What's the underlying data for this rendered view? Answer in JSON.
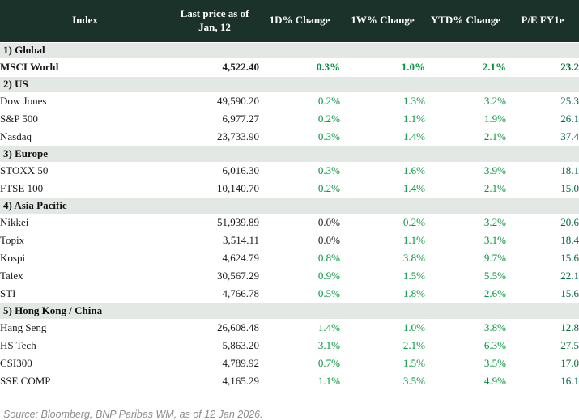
{
  "colors": {
    "header_bg": "#1b322b",
    "header_text": "#ffffff",
    "section_bg": "#e4e8e4",
    "positive_green": "#00963c",
    "pe_green": "#006b3c",
    "neutral_text": "#1a1a1a",
    "source_gray": "#8c8c8c"
  },
  "headers": {
    "index": "Index",
    "price_line1": "Last price as of",
    "price_line2": "Jan, 12",
    "d1": "1D% Change",
    "w1": "1W% Change",
    "ytd": "YTD% Change",
    "pe": "P/E FY1e"
  },
  "sections": [
    {
      "label": "1) Global",
      "rows": [
        {
          "index": "MSCI World",
          "price": "4,522.40",
          "changes": [
            {
              "value": "0.3%",
              "color": "green"
            },
            {
              "value": "1.0%",
              "color": "green"
            },
            {
              "value": "2.1%",
              "color": "green"
            }
          ],
          "pe": "23.2",
          "emphasis": true
        }
      ]
    },
    {
      "label": "2) US",
      "rows": [
        {
          "index": "Dow Jones",
          "price": "49,590.20",
          "changes": [
            {
              "value": "0.2%",
              "color": "green"
            },
            {
              "value": "1.3%",
              "color": "green"
            },
            {
              "value": "3.2%",
              "color": "green"
            }
          ],
          "pe": "25.3",
          "emphasis": false
        },
        {
          "index": "S&P 500",
          "price": "6,977.27",
          "changes": [
            {
              "value": "0.2%",
              "color": "green"
            },
            {
              "value": "1.1%",
              "color": "green"
            },
            {
              "value": "1.9%",
              "color": "green"
            }
          ],
          "pe": "26.1",
          "emphasis": false
        },
        {
          "index": "Nasdaq",
          "price": "23,733.90",
          "changes": [
            {
              "value": "0.3%",
              "color": "green"
            },
            {
              "value": "1.4%",
              "color": "green"
            },
            {
              "value": "2.1%",
              "color": "green"
            }
          ],
          "pe": "37.4",
          "emphasis": false
        }
      ]
    },
    {
      "label": "3) Europe",
      "rows": [
        {
          "index": "STOXX 50",
          "price": "6,016.30",
          "changes": [
            {
              "value": "0.3%",
              "color": "green"
            },
            {
              "value": "1.6%",
              "color": "green"
            },
            {
              "value": "3.9%",
              "color": "green"
            }
          ],
          "pe": "18.1",
          "emphasis": false
        },
        {
          "index": "FTSE 100",
          "price": "10,140.70",
          "changes": [
            {
              "value": "0.2%",
              "color": "green"
            },
            {
              "value": "1.4%",
              "color": "green"
            },
            {
              "value": "2.1%",
              "color": "green"
            }
          ],
          "pe": "15.0",
          "emphasis": false
        }
      ]
    },
    {
      "label": "4) Asia Pacific",
      "rows": [
        {
          "index": "Nikkei",
          "price": "51,939.89",
          "changes": [
            {
              "value": "0.0%",
              "color": "neutral"
            },
            {
              "value": "0.2%",
              "color": "green"
            },
            {
              "value": "3.2%",
              "color": "green"
            }
          ],
          "pe": "20.6",
          "emphasis": false
        },
        {
          "index": "Topix",
          "price": "3,514.11",
          "changes": [
            {
              "value": "0.0%",
              "color": "neutral"
            },
            {
              "value": "1.1%",
              "color": "green"
            },
            {
              "value": "3.1%",
              "color": "green"
            }
          ],
          "pe": "18.4",
          "emphasis": false
        },
        {
          "index": "Kospi",
          "price": "4,624.79",
          "changes": [
            {
              "value": "0.8%",
              "color": "green"
            },
            {
              "value": "3.8%",
              "color": "green"
            },
            {
              "value": "9.7%",
              "color": "green"
            }
          ],
          "pe": "15.6",
          "emphasis": false
        },
        {
          "index": "Taiex",
          "price": "30,567.29",
          "changes": [
            {
              "value": "0.9%",
              "color": "green"
            },
            {
              "value": "1.5%",
              "color": "green"
            },
            {
              "value": "5.5%",
              "color": "green"
            }
          ],
          "pe": "22.1",
          "emphasis": false
        },
        {
          "index": "STI",
          "price": "4,766.78",
          "changes": [
            {
              "value": "0.5%",
              "color": "green"
            },
            {
              "value": "1.8%",
              "color": "green"
            },
            {
              "value": "2.6%",
              "color": "green"
            }
          ],
          "pe": "15.6",
          "emphasis": false
        }
      ]
    },
    {
      "label": "5) Hong Kong / China",
      "rows": [
        {
          "index": "Hang Seng",
          "price": "26,608.48",
          "changes": [
            {
              "value": "1.4%",
              "color": "green"
            },
            {
              "value": "1.0%",
              "color": "green"
            },
            {
              "value": "3.8%",
              "color": "green"
            }
          ],
          "pe": "12.8",
          "emphasis": false
        },
        {
          "index": "HS Tech",
          "price": "5,863.20",
          "changes": [
            {
              "value": "3.1%",
              "color": "green"
            },
            {
              "value": "2.1%",
              "color": "green"
            },
            {
              "value": "6.3%",
              "color": "green"
            }
          ],
          "pe": "27.5",
          "emphasis": false
        },
        {
          "index": "CSI300",
          "price": "4,789.92",
          "changes": [
            {
              "value": "0.7%",
              "color": "green"
            },
            {
              "value": "1.5%",
              "color": "green"
            },
            {
              "value": "3.5%",
              "color": "green"
            }
          ],
          "pe": "17.0",
          "emphasis": false
        },
        {
          "index": "SSE COMP",
          "price": "4,165.29",
          "changes": [
            {
              "value": "1.1%",
              "color": "green"
            },
            {
              "value": "3.5%",
              "color": "green"
            },
            {
              "value": "4.9%",
              "color": "green"
            }
          ],
          "pe": "16.1",
          "emphasis": false
        }
      ]
    }
  ],
  "footer": {
    "source": "Source: Bloomberg, BNP Paribas WM, as of 12 Jan 2026."
  },
  "chart_data": {
    "type": "table",
    "columns": [
      "Index",
      "Last price as of Jan, 12",
      "1D% Change",
      "1W% Change",
      "YTD% Change",
      "P/E FY1e"
    ],
    "rows": [
      [
        "1) Global",
        "",
        "",
        "",
        "",
        ""
      ],
      [
        "MSCI World",
        "4,522.40",
        "0.3%",
        "1.0%",
        "2.1%",
        "23.2"
      ],
      [
        "2) US",
        "",
        "",
        "",
        "",
        ""
      ],
      [
        "Dow Jones",
        "49,590.20",
        "0.2%",
        "1.3%",
        "3.2%",
        "25.3"
      ],
      [
        "S&P 500",
        "6,977.27",
        "0.2%",
        "1.1%",
        "1.9%",
        "26.1"
      ],
      [
        "Nasdaq",
        "23,733.90",
        "0.3%",
        "1.4%",
        "2.1%",
        "37.4"
      ],
      [
        "3) Europe",
        "",
        "",
        "",
        "",
        ""
      ],
      [
        "STOXX 50",
        "6,016.30",
        "0.3%",
        "1.6%",
        "3.9%",
        "18.1"
      ],
      [
        "FTSE 100",
        "10,140.70",
        "0.2%",
        "1.4%",
        "2.1%",
        "15.0"
      ],
      [
        "4) Asia Pacific",
        "",
        "",
        "",
        "",
        ""
      ],
      [
        "Nikkei",
        "51,939.89",
        "0.0%",
        "0.2%",
        "3.2%",
        "20.6"
      ],
      [
        "Topix",
        "3,514.11",
        "0.0%",
        "1.1%",
        "3.1%",
        "18.4"
      ],
      [
        "Kospi",
        "4,624.79",
        "0.8%",
        "3.8%",
        "9.7%",
        "15.6"
      ],
      [
        "Taiex",
        "30,567.29",
        "0.9%",
        "1.5%",
        "5.5%",
        "22.1"
      ],
      [
        "STI",
        "4,766.78",
        "0.5%",
        "1.8%",
        "2.6%",
        "15.6"
      ],
      [
        "5) Hong Kong / China",
        "",
        "",
        "",
        "",
        ""
      ],
      [
        "Hang Seng",
        "26,608.48",
        "1.4%",
        "1.0%",
        "3.8%",
        "12.8"
      ],
      [
        "HS Tech",
        "5,863.20",
        "3.1%",
        "2.1%",
        "6.3%",
        "27.5"
      ],
      [
        "CSI300",
        "4,789.92",
        "0.7%",
        "1.5%",
        "3.5%",
        "17.0"
      ],
      [
        "SSE COMP",
        "4,165.29",
        "1.1%",
        "3.5%",
        "4.9%",
        "16.1"
      ]
    ],
    "source": "Source: Bloomberg, BNP Paribas WM, as of 12 Jan 2026."
  }
}
